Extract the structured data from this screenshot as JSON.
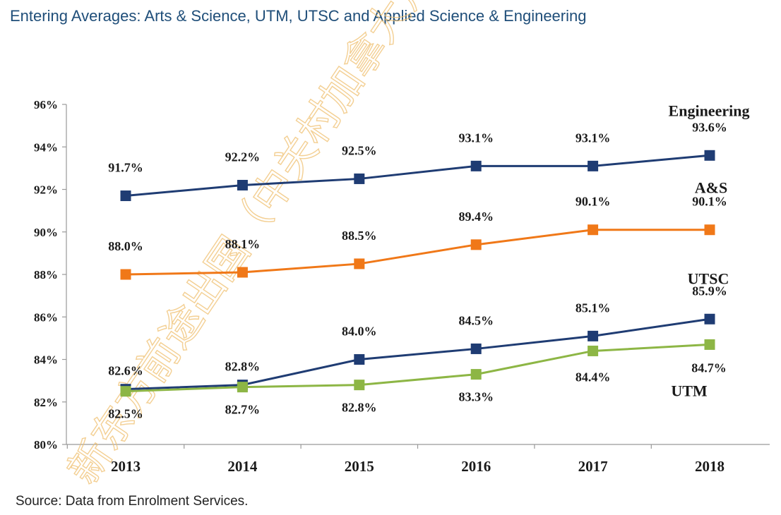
{
  "title": "Entering Averages: Arts & Science, UTM, UTSC and Applied Science & Engineering",
  "source": "Source: Data from Enrolment Services.",
  "watermark": "新东方前途出国（中关村加拿大）",
  "chart_data": {
    "type": "line",
    "categories": [
      "2013",
      "2014",
      "2015",
      "2016",
      "2017",
      "2018"
    ],
    "ylim": [
      80,
      96
    ],
    "yticks": [
      80,
      82,
      84,
      86,
      88,
      90,
      92,
      94,
      96
    ],
    "ytick_labels": [
      "80%",
      "82%",
      "84%",
      "86%",
      "88%",
      "90%",
      "92%",
      "94%",
      "96%"
    ],
    "series": [
      {
        "name": "Engineering",
        "color": "#1f3c73",
        "values": [
          91.7,
          92.2,
          92.5,
          93.1,
          93.1,
          93.6
        ],
        "labels": [
          "91.7%",
          "92.2%",
          "92.5%",
          "93.1%",
          "93.1%",
          "93.6%"
        ],
        "label_pos": "above"
      },
      {
        "name": "A&S",
        "color": "#f07818",
        "values": [
          88.0,
          88.1,
          88.5,
          89.4,
          90.1,
          90.1
        ],
        "labels": [
          "88.0%",
          "88.1%",
          "88.5%",
          "89.4%",
          "90.1%",
          "90.1%"
        ],
        "label_pos": "above"
      },
      {
        "name": "UTSC",
        "color": "#1f3c73",
        "values": [
          82.6,
          82.8,
          84.0,
          84.5,
          85.1,
          85.9
        ],
        "labels": [
          "82.6%",
          "82.8%",
          "84.0%",
          "84.5%",
          "85.1%",
          "85.9%"
        ],
        "label_pos": "above"
      },
      {
        "name": "UTM",
        "color": "#8db645",
        "values": [
          82.5,
          82.7,
          82.8,
          83.3,
          84.4,
          84.7
        ],
        "labels": [
          "82.5%",
          "82.7%",
          "82.8%",
          "83.3%",
          "84.4%",
          "84.7%"
        ],
        "label_pos": "below"
      }
    ]
  }
}
